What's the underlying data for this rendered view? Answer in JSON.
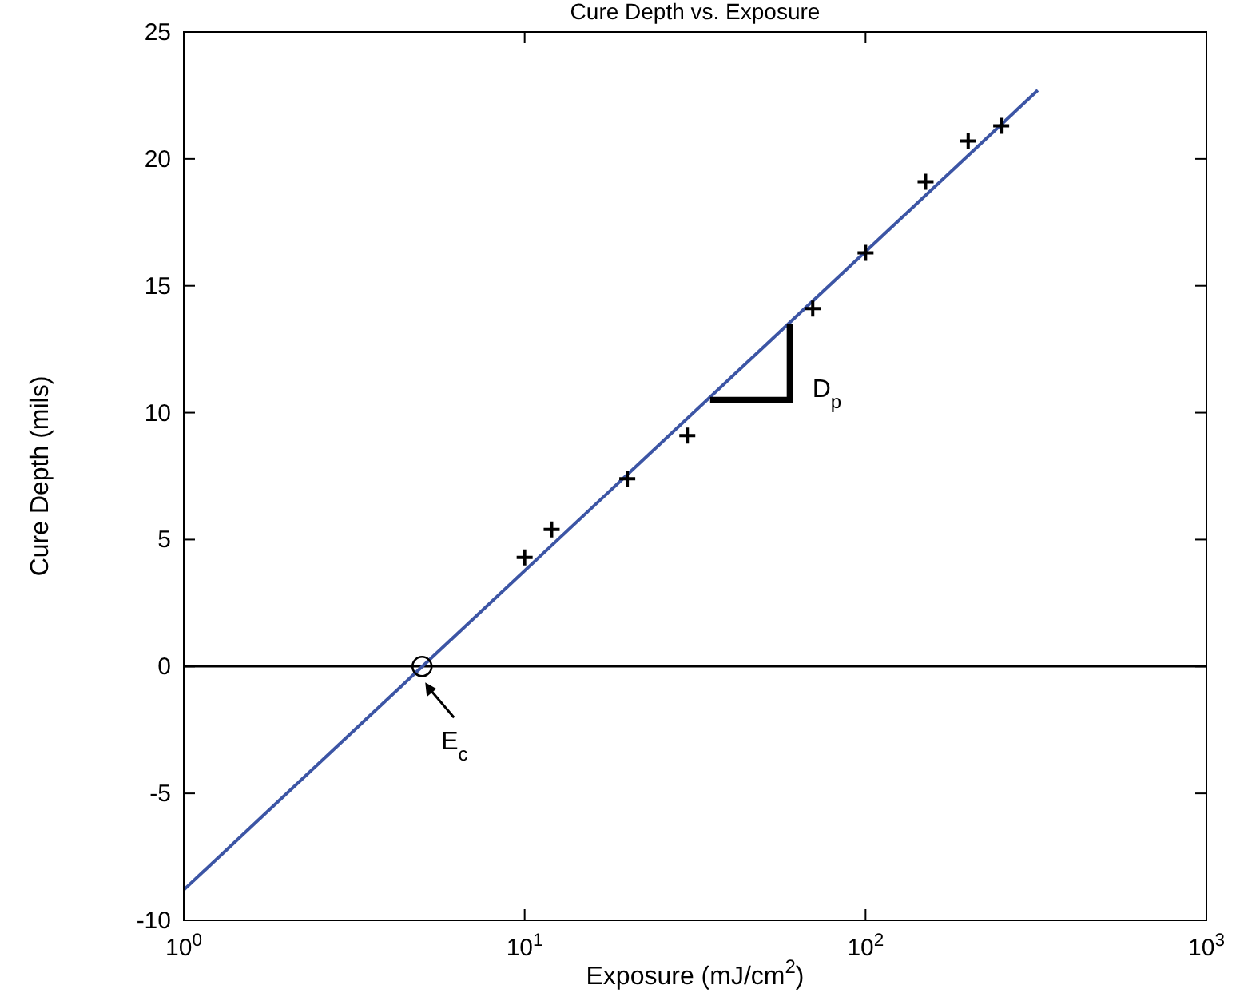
{
  "chart_data": {
    "type": "scatter",
    "title": "Cure Depth vs. Exposure",
    "xlabel": "Exposure (mJ/cm$^{2}$)",
    "ylabel": "Cure Depth (mils)",
    "log": "x",
    "grid": false,
    "xlim": [
      1,
      1000
    ],
    "xticks": [
      {
        "value": 1,
        "label": "10$^{0}$"
      },
      {
        "value": 10,
        "label": "10$^{1}$"
      },
      {
        "value": 100,
        "label": "10$^{2}$"
      },
      {
        "value": 1000,
        "label": "10$^{3}$"
      }
    ],
    "ylim": [
      -10,
      25
    ],
    "yticks": [
      -10,
      -5,
      0,
      5,
      10,
      15,
      20,
      25
    ],
    "series": [
      {
        "type": "line",
        "color": "#3c55a5",
        "x": [
          1,
          320
        ],
        "values": [
          -8.8,
          22.7
        ],
        "marker": "none",
        "line_style": "solid"
      },
      {
        "color": "#000000",
        "x": [
          10,
          12,
          20,
          30,
          70,
          100,
          150,
          200,
          250
        ],
        "values": [
          4.3,
          5.4,
          7.4,
          9.1,
          14.1,
          16.3,
          19.1,
          20.7,
          21.3
        ],
        "marker": "cross"
      },
      {
        "type": "scatter",
        "color": "#000000",
        "x": [
          5
        ],
        "values": [
          0
        ],
        "marker": "circle"
      }
    ],
    "ref_lines": [
      {
        "axis": "y",
        "value": 0,
        "color": "#000000",
        "line_style": "solid"
      }
    ],
    "annotations": [
      {
        "text": "E$_{c}$",
        "x": 5,
        "y": 0
      },
      "D$_{p}$"
    ]
  }
}
